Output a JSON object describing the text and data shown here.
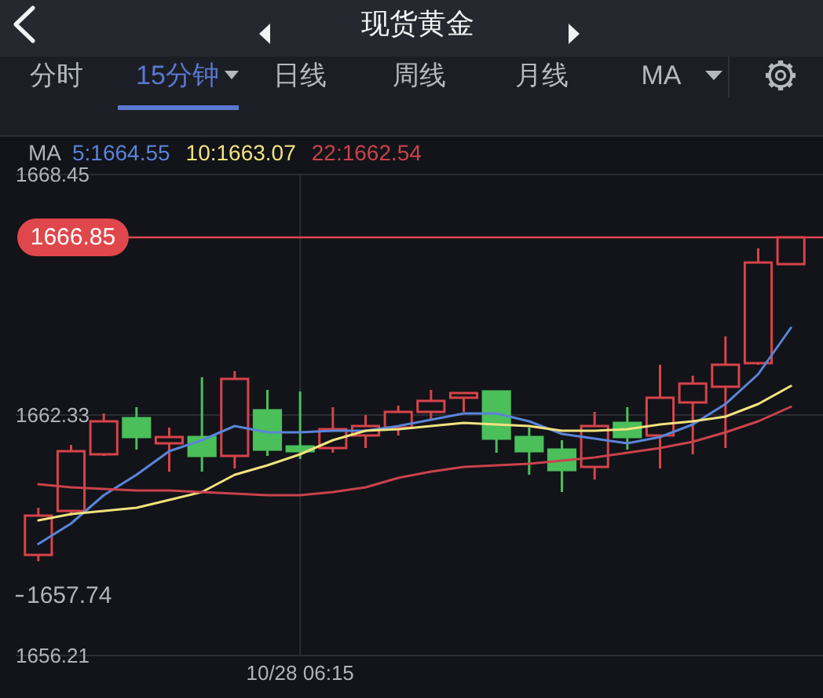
{
  "chart_data": {
    "type": "candlestick",
    "title": "现货黄金",
    "categories": [
      null,
      null,
      null,
      null,
      null,
      null,
      null,
      null,
      "10/28 06:15",
      null,
      null,
      null,
      null,
      null,
      null,
      null,
      null,
      null,
      null,
      null,
      null,
      null,
      null,
      null
    ],
    "ohlc": [
      [
        1658.77,
        1659.97,
        1658.61,
        1659.77
      ],
      [
        1659.89,
        1661.57,
        1659.77,
        1661.41
      ],
      [
        1661.33,
        1662.37,
        1661.29,
        1662.17
      ],
      [
        1662.25,
        1662.53,
        1661.45,
        1661.77
      ],
      [
        1661.61,
        1662.01,
        1660.89,
        1661.77
      ],
      [
        1661.77,
        1663.29,
        1660.89,
        1661.29
      ],
      [
        1661.29,
        1663.45,
        1660.97,
        1663.25
      ],
      [
        1662.45,
        1662.97,
        1661.29,
        1661.45
      ],
      [
        1661.53,
        1662.93,
        1661.21,
        1661.41
      ],
      [
        1661.49,
        1662.53,
        1661.37,
        1661.97
      ],
      [
        1661.81,
        1662.33,
        1661.49,
        1662.05
      ],
      [
        1662.01,
        1662.57,
        1661.81,
        1662.41
      ],
      [
        1662.41,
        1662.97,
        1662.21,
        1662.69
      ],
      [
        1662.77,
        1662.89,
        1662.41,
        1662.89
      ],
      [
        1662.93,
        1662.93,
        1661.37,
        1661.73
      ],
      [
        1661.77,
        1662.01,
        1660.81,
        1661.41
      ],
      [
        1661.45,
        1661.69,
        1660.37,
        1660.93
      ],
      [
        1661.01,
        1662.41,
        1660.69,
        1662.05
      ],
      [
        1662.13,
        1662.53,
        1661.45,
        1661.77
      ],
      [
        1661.81,
        1663.61,
        1660.97,
        1662.77
      ],
      [
        1662.65,
        1663.33,
        1661.33,
        1663.13
      ],
      [
        1663.05,
        1664.33,
        1661.49,
        1663.61
      ],
      [
        1663.65,
        1666.57,
        1663.61,
        1666.21
      ],
      [
        1666.17,
        1666.85,
        1666.17,
        1666.85
      ]
    ],
    "colors": [
      "#d8434a",
      "#d8434a",
      "#d8434a",
      "#4bbf5a",
      "#d8434a",
      "#4bbf5a",
      "#d8434a",
      "#4bbf5a",
      "#4bbf5a",
      "#d8434a",
      "#d8434a",
      "#d8434a",
      "#d8434a",
      "#d8434a",
      "#4bbf5a",
      "#4bbf5a",
      "#4bbf5a",
      "#d8434a",
      "#4bbf5a",
      "#d8434a",
      "#d8434a",
      "#d8434a",
      "#d8434a",
      "#d8434a"
    ],
    "series": [
      {
        "type": "line",
        "name": "5:1664.55",
        "color": "#5b84d9",
        "values": [
          1659.05,
          1659.57,
          1660.29,
          1660.81,
          1661.41,
          1661.69,
          1662.05,
          1661.89,
          1661.89,
          1661.93,
          1661.93,
          1662.05,
          1662.21,
          1662.37,
          1662.37,
          1662.17,
          1661.85,
          1661.73,
          1661.61,
          1661.77,
          1662.09,
          1662.61,
          1663.37,
          1664.55
        ]
      },
      {
        "type": "line",
        "name": "10:1663.07",
        "color": "#f1e27f",
        "values": [
          1659.65,
          1659.81,
          1659.89,
          1659.97,
          1660.17,
          1660.37,
          1660.81,
          1661.05,
          1661.33,
          1661.69,
          1661.93,
          1661.97,
          1662.05,
          1662.13,
          1662.09,
          1662.05,
          1661.93,
          1661.93,
          1661.97,
          1662.09,
          1662.17,
          1662.29,
          1662.61,
          1663.07
        ]
      },
      {
        "type": "line",
        "name": "22:1662.54",
        "color": "#c9434b",
        "values": [
          1660.57,
          1660.49,
          1660.45,
          1660.41,
          1660.41,
          1660.37,
          1660.33,
          1660.29,
          1660.29,
          1660.37,
          1660.49,
          1660.73,
          1660.89,
          1661.01,
          1661.05,
          1661.09,
          1661.17,
          1661.25,
          1661.37,
          1661.49,
          1661.65,
          1661.89,
          1662.17,
          1662.54
        ]
      }
    ],
    "legend_title": "MA",
    "legend": "top left",
    "ylim": [
      1656.21,
      1668.45
    ],
    "yticks": [
      1668.45,
      1662.33,
      1656.21
    ],
    "grid": true,
    "ref_lines": [
      {
        "axis": "y",
        "value": 1666.85,
        "label": "1666.85",
        "color": "#e0474c"
      }
    ],
    "annotations": [
      "分时",
      "15分钟",
      "日线",
      "周线",
      "月线",
      "MA",
      "1657.74"
    ]
  }
}
